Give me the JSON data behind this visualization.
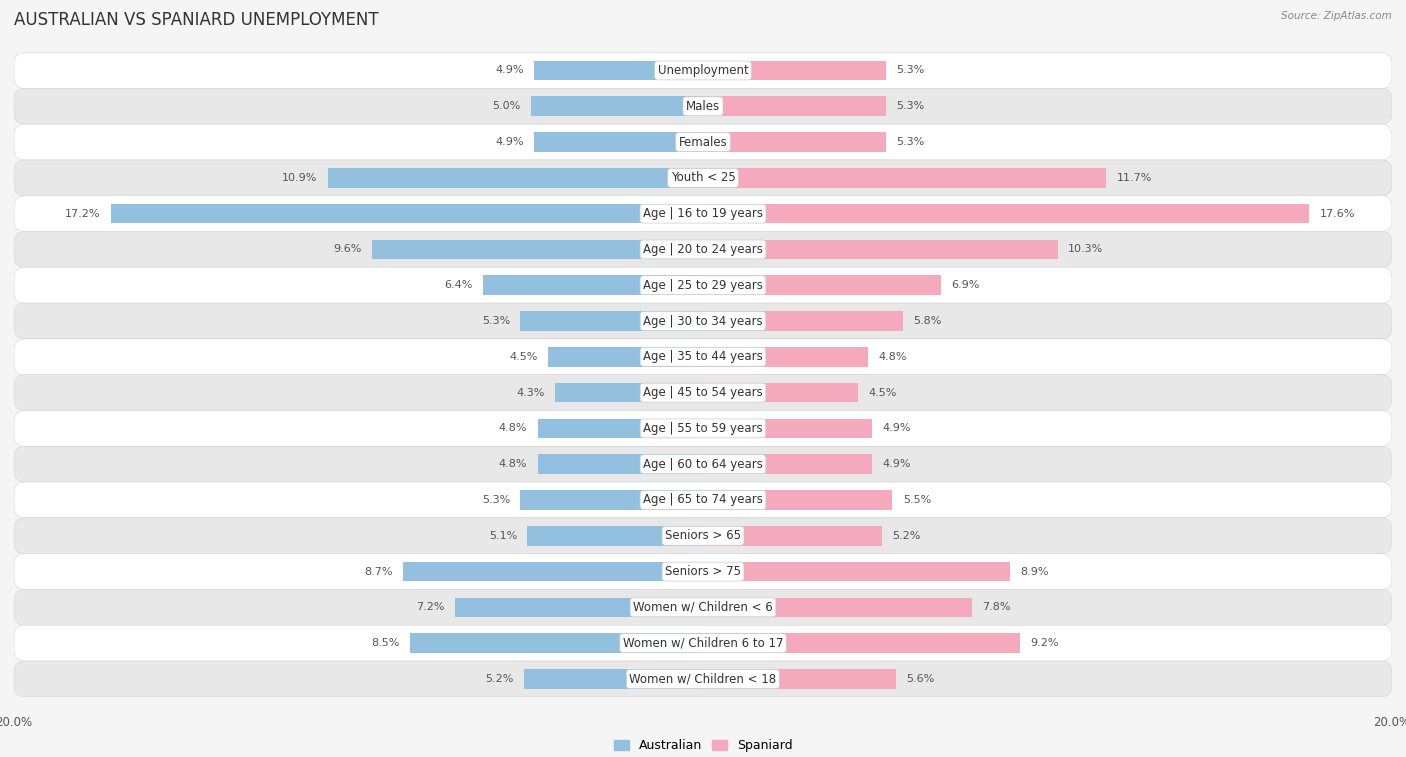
{
  "title": "AUSTRALIAN VS SPANIARD UNEMPLOYMENT",
  "source": "Source: ZipAtlas.com",
  "categories": [
    "Unemployment",
    "Males",
    "Females",
    "Youth < 25",
    "Age | 16 to 19 years",
    "Age | 20 to 24 years",
    "Age | 25 to 29 years",
    "Age | 30 to 34 years",
    "Age | 35 to 44 years",
    "Age | 45 to 54 years",
    "Age | 55 to 59 years",
    "Age | 60 to 64 years",
    "Age | 65 to 74 years",
    "Seniors > 65",
    "Seniors > 75",
    "Women w/ Children < 6",
    "Women w/ Children 6 to 17",
    "Women w/ Children < 18"
  ],
  "australian": [
    4.9,
    5.0,
    4.9,
    10.9,
    17.2,
    9.6,
    6.4,
    5.3,
    4.5,
    4.3,
    4.8,
    4.8,
    5.3,
    5.1,
    8.7,
    7.2,
    8.5,
    5.2
  ],
  "spaniard": [
    5.3,
    5.3,
    5.3,
    11.7,
    17.6,
    10.3,
    6.9,
    5.8,
    4.8,
    4.5,
    4.9,
    4.9,
    5.5,
    5.2,
    8.9,
    7.8,
    9.2,
    5.6
  ],
  "australian_color": "#92c0de",
  "spaniard_color": "#f4a9bc",
  "max_val": 20.0,
  "background_color": "#f5f5f5",
  "row_bg_light": "#ffffff",
  "row_bg_dark": "#e8e8e8",
  "bar_height": 0.55,
  "title_fontsize": 12,
  "label_fontsize": 8.5,
  "value_fontsize": 8,
  "source_fontsize": 7.5
}
